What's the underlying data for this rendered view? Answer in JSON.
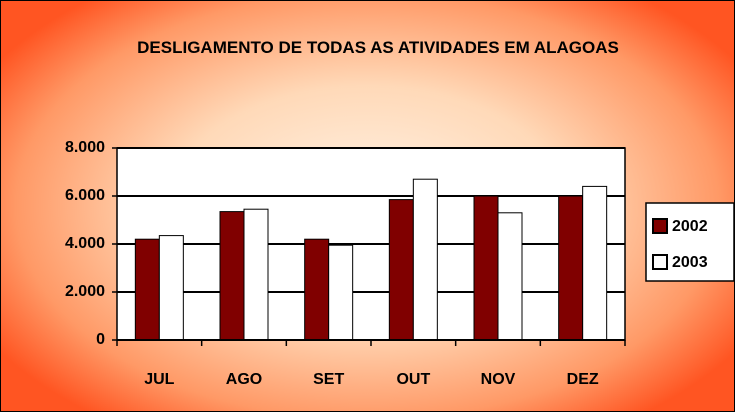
{
  "chart_data": {
    "type": "bar",
    "title": "DESLIGAMENTO DE TODAS AS ATIVIDADES EM ALAGOAS",
    "categories": [
      "JUL",
      "AGO",
      "SET",
      "OUT",
      "NOV",
      "DEZ"
    ],
    "series": [
      {
        "name": "2002",
        "color": "#800000",
        "values": [
          4200,
          5350,
          4200,
          5850,
          6000,
          6000
        ]
      },
      {
        "name": "2003",
        "color": "#ffffff",
        "values": [
          4350,
          5450,
          3950,
          6700,
          5300,
          6400
        ]
      }
    ],
    "ylim": [
      0,
      8000
    ],
    "yticks": [
      0,
      {
        "value": 2000,
        "label": "2.000"
      },
      {
        "value": 4000,
        "label": "4.000"
      },
      {
        "value": 6000,
        "label": "6.000"
      },
      {
        "value": 8000,
        "label": "8.000"
      }
    ],
    "grid": true,
    "legend": "right"
  }
}
